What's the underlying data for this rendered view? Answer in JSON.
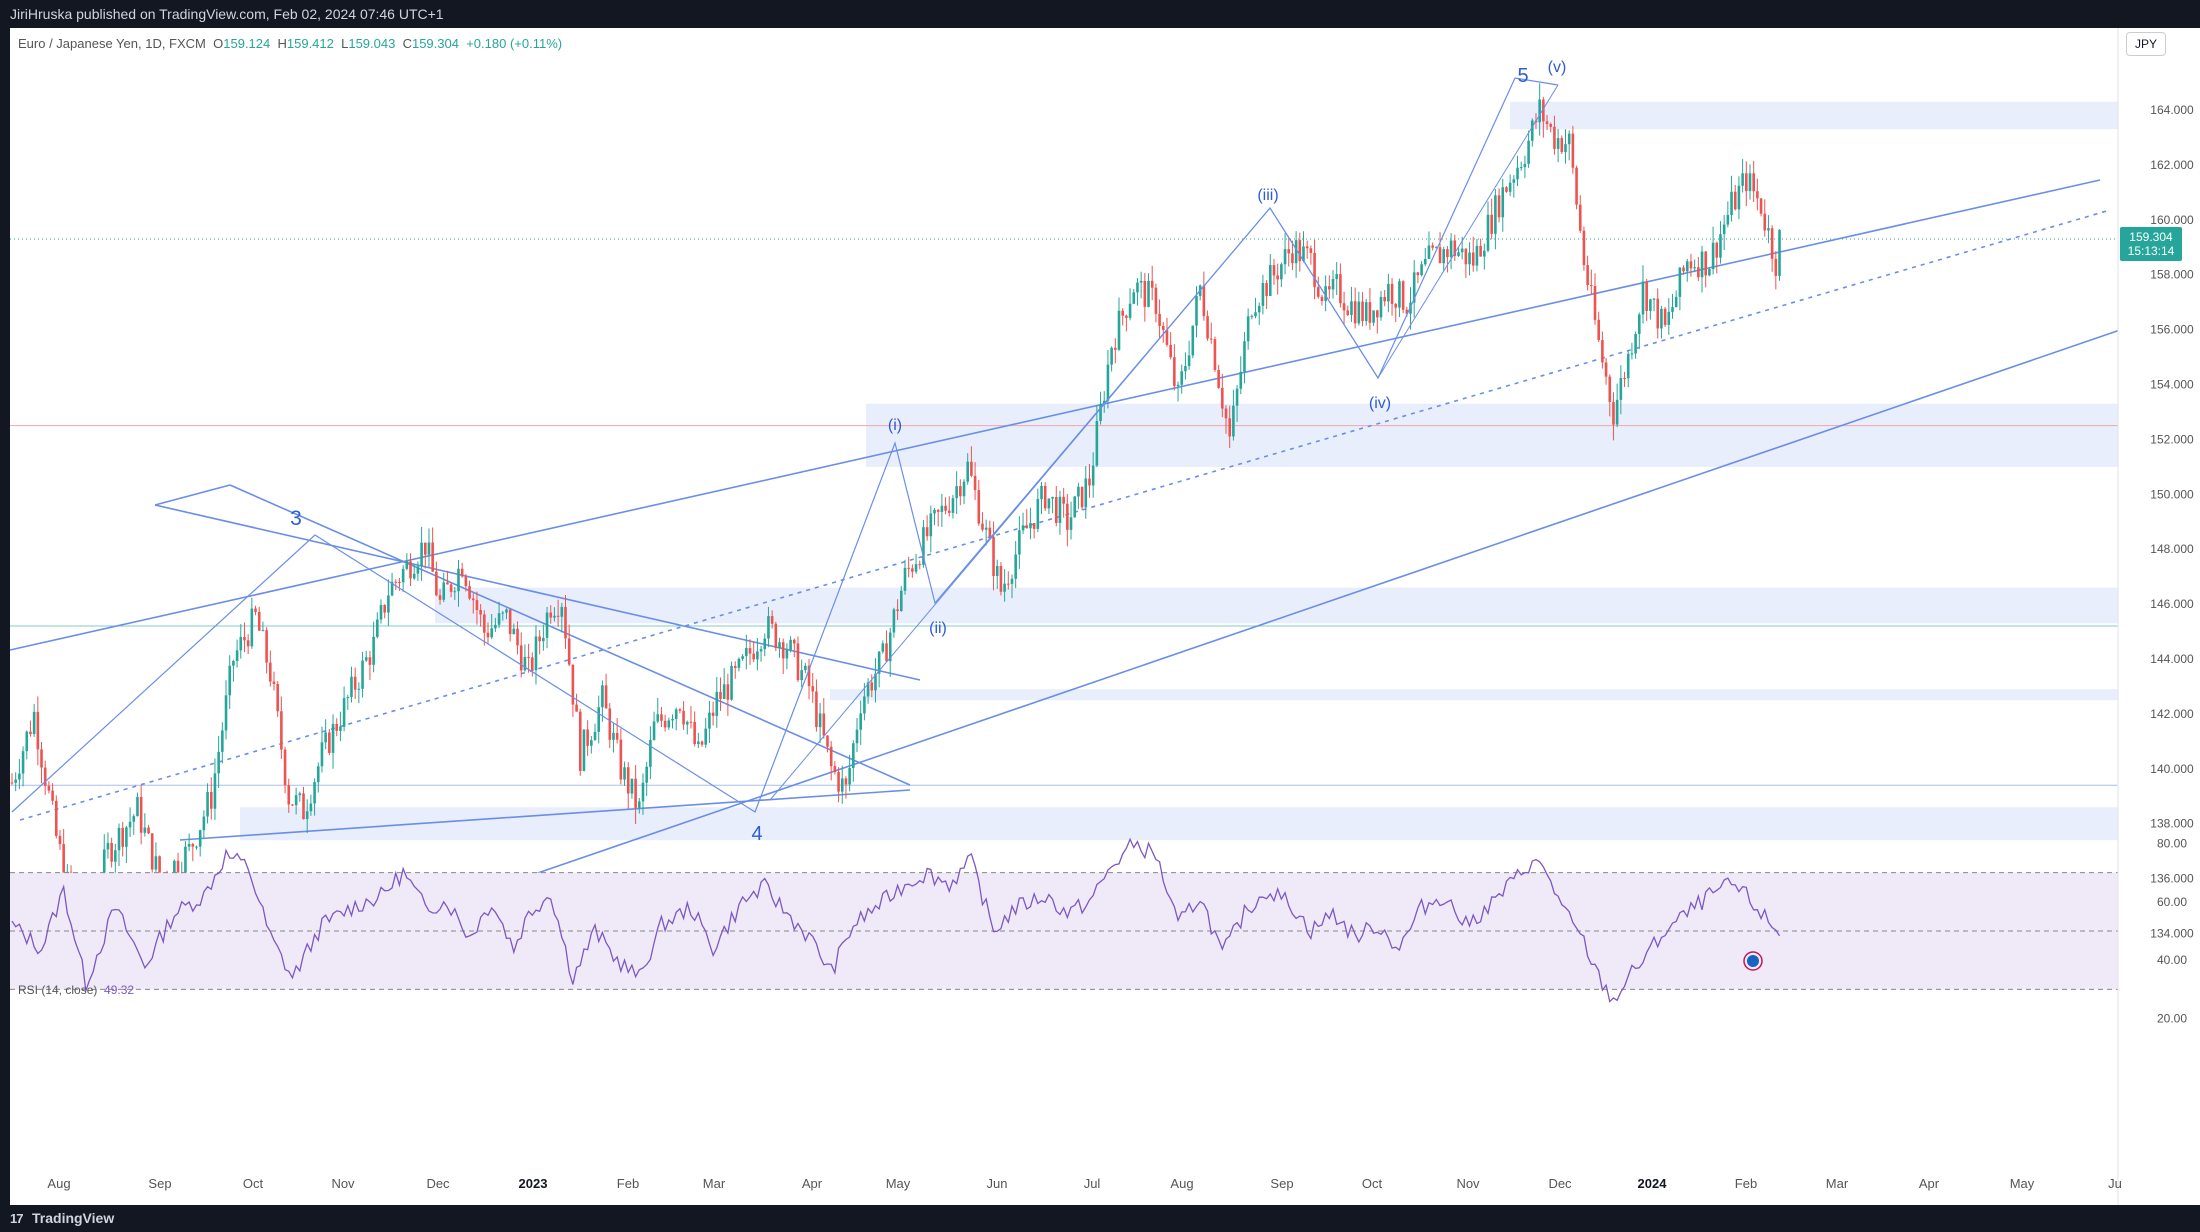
{
  "header": {
    "published": "JiriHruska published on TradingView.com, Feb 02, 2024 07:46 UTC+1"
  },
  "legend": {
    "symbol": "Euro / Japanese Yen, 1D, FXCM",
    "open_label": "O",
    "open": "159.124",
    "high_label": "H",
    "high": "159.412",
    "low_label": "L",
    "low": "159.043",
    "close_label": "C",
    "close": "159.304",
    "change": "+0.180 (+0.11%)"
  },
  "currency_button": "JPY",
  "price_tag": {
    "price": "159.304",
    "countdown": "15:13:14"
  },
  "rsi": {
    "label": "RSI (14, close)",
    "value": "49.32"
  },
  "footer": {
    "logo_mark": "17",
    "brand": "TradingView"
  },
  "colors": {
    "up": "#26a69a",
    "down": "#ef5350",
    "lines": "#6a8ee8",
    "zones": "#e8eefc",
    "rsi_line": "#7e57c2",
    "rsi_band": "#efe9f8",
    "hline_red": "#f4a6a6",
    "hline_teal": "#80cbc4"
  },
  "chart_data": {
    "type": "candlestick",
    "instrument": "Euro / Japanese Yen",
    "timeframe": "1D",
    "y_axis": {
      "ticks": [
        "134.000",
        "136.000",
        "138.000",
        "140.000",
        "142.000",
        "144.000",
        "146.000",
        "148.000",
        "150.000",
        "152.000",
        "154.000",
        "156.000",
        "158.000",
        "160.000",
        "162.000",
        "164.000"
      ]
    },
    "x_axis": {
      "ticks": [
        "Aug",
        "Sep",
        "Oct",
        "Nov",
        "Dec",
        "2023",
        "Feb",
        "Mar",
        "Apr",
        "May",
        "Jun",
        "Jul",
        "Aug",
        "Sep",
        "Oct",
        "Nov",
        "Dec",
        "2024",
        "Feb",
        "Mar",
        "Apr",
        "May",
        "Ju"
      ],
      "bold": [
        "2023",
        "2024"
      ]
    },
    "price_path": [
      [
        0,
        139.5
      ],
      [
        6,
        142.0
      ],
      [
        12,
        137.5
      ],
      [
        19,
        133.5
      ],
      [
        26,
        137.0
      ],
      [
        34,
        138.5
      ],
      [
        40,
        136.0
      ],
      [
        48,
        137.0
      ],
      [
        54,
        139.0
      ],
      [
        60,
        144.0
      ],
      [
        66,
        145.5
      ],
      [
        70,
        143.5
      ],
      [
        75,
        139.0
      ],
      [
        79,
        138.5
      ],
      [
        84,
        140.5
      ],
      [
        92,
        142.8
      ],
      [
        98,
        144.5
      ],
      [
        102,
        146.5
      ],
      [
        106,
        147.2
      ],
      [
        112,
        148.2
      ],
      [
        116,
        146.0
      ],
      [
        122,
        147.5
      ],
      [
        128,
        145.0
      ],
      [
        134,
        145.5
      ],
      [
        140,
        143.5
      ],
      [
        146,
        146.0
      ],
      [
        149,
        146.2
      ],
      [
        154,
        140.5
      ],
      [
        160,
        142.5
      ],
      [
        165,
        140.0
      ],
      [
        170,
        138.5
      ],
      [
        174,
        141.5
      ],
      [
        181,
        142.5
      ],
      [
        186,
        140.5
      ],
      [
        191,
        142.5
      ],
      [
        197,
        143.5
      ],
      [
        204,
        145.2
      ],
      [
        210,
        144.5
      ],
      [
        216,
        143.0
      ],
      [
        222,
        140.0
      ],
      [
        226,
        139.2
      ],
      [
        230,
        142.5
      ],
      [
        236,
        144.0
      ],
      [
        242,
        147.0
      ],
      [
        248,
        148.5
      ],
      [
        254,
        149.8
      ],
      [
        259,
        151.0
      ],
      [
        263,
        149.0
      ],
      [
        268,
        146.5
      ],
      [
        274,
        148.5
      ],
      [
        280,
        150.0
      ],
      [
        286,
        149.0
      ],
      [
        292,
        150.5
      ],
      [
        298,
        155.5
      ],
      [
        304,
        157.6
      ],
      [
        310,
        157.0
      ],
      [
        316,
        153.5
      ],
      [
        322,
        157.5
      ],
      [
        326,
        155.0
      ],
      [
        330,
        152.0
      ],
      [
        336,
        157.0
      ],
      [
        342,
        158.0
      ],
      [
        347,
        159.0
      ],
      [
        352,
        158.5
      ],
      [
        356,
        157.0
      ],
      [
        359,
        157.5
      ],
      [
        362,
        157.0
      ],
      [
        367,
        156.5
      ],
      [
        373,
        157.5
      ],
      [
        378,
        157.0
      ],
      [
        384,
        158.5
      ],
      [
        390,
        159.0
      ],
      [
        396,
        158.5
      ],
      [
        404,
        161.0
      ],
      [
        410,
        162.5
      ],
      [
        414,
        164.0
      ],
      [
        418,
        163.0
      ],
      [
        422,
        162.8
      ],
      [
        426,
        158.5
      ],
      [
        430,
        155.5
      ],
      [
        434,
        153.0
      ],
      [
        438,
        155.0
      ],
      [
        442,
        157.5
      ],
      [
        448,
        156.0
      ],
      [
        454,
        158.5
      ],
      [
        460,
        158.5
      ],
      [
        466,
        160.5
      ],
      [
        470,
        161.5
      ],
      [
        474,
        160.5
      ],
      [
        478,
        158.5
      ],
      [
        479,
        159.3
      ]
    ],
    "rsi_levels": {
      "upper": 70,
      "middle": 50,
      "lower": 30
    },
    "rsi_axis": {
      "ticks": [
        "80.00",
        "60.00",
        "40.00",
        "20.00"
      ]
    },
    "rsi_path": [
      [
        0,
        52
      ],
      [
        8,
        44
      ],
      [
        14,
        64
      ],
      [
        20,
        32
      ],
      [
        28,
        58
      ],
      [
        36,
        38
      ],
      [
        44,
        56
      ],
      [
        52,
        62
      ],
      [
        58,
        76
      ],
      [
        64,
        72
      ],
      [
        70,
        48
      ],
      [
        76,
        34
      ],
      [
        84,
        52
      ],
      [
        92,
        58
      ],
      [
        100,
        62
      ],
      [
        106,
        70
      ],
      [
        112,
        58
      ],
      [
        118,
        60
      ],
      [
        124,
        48
      ],
      [
        130,
        60
      ],
      [
        136,
        44
      ],
      [
        140,
        56
      ],
      [
        146,
        63
      ],
      [
        152,
        34
      ],
      [
        158,
        50
      ],
      [
        164,
        40
      ],
      [
        170,
        34
      ],
      [
        176,
        52
      ],
      [
        184,
        58
      ],
      [
        190,
        44
      ],
      [
        198,
        60
      ],
      [
        204,
        65
      ],
      [
        210,
        56
      ],
      [
        216,
        48
      ],
      [
        222,
        36
      ],
      [
        228,
        52
      ],
      [
        236,
        60
      ],
      [
        242,
        66
      ],
      [
        248,
        70
      ],
      [
        254,
        66
      ],
      [
        260,
        74
      ],
      [
        266,
        50
      ],
      [
        272,
        58
      ],
      [
        280,
        62
      ],
      [
        286,
        56
      ],
      [
        292,
        60
      ],
      [
        298,
        72
      ],
      [
        304,
        80
      ],
      [
        310,
        76
      ],
      [
        316,
        52
      ],
      [
        322,
        62
      ],
      [
        328,
        42
      ],
      [
        334,
        56
      ],
      [
        340,
        64
      ],
      [
        346,
        60
      ],
      [
        352,
        50
      ],
      [
        358,
        56
      ],
      [
        364,
        48
      ],
      [
        370,
        52
      ],
      [
        376,
        44
      ],
      [
        382,
        58
      ],
      [
        388,
        62
      ],
      [
        394,
        52
      ],
      [
        400,
        58
      ],
      [
        406,
        66
      ],
      [
        412,
        74
      ],
      [
        416,
        70
      ],
      [
        420,
        58
      ],
      [
        426,
        46
      ],
      [
        430,
        34
      ],
      [
        434,
        26
      ],
      [
        438,
        34
      ],
      [
        442,
        40
      ],
      [
        448,
        50
      ],
      [
        454,
        56
      ],
      [
        460,
        62
      ],
      [
        466,
        66
      ],
      [
        470,
        62
      ],
      [
        474,
        56
      ],
      [
        479,
        49
      ]
    ],
    "wave_labels": [
      {
        "text": "3"
      },
      {
        "text": "4"
      },
      {
        "text": "5"
      },
      {
        "text": "(i)"
      },
      {
        "text": "(ii)"
      },
      {
        "text": "(iii)"
      },
      {
        "text": "(iv)"
      },
      {
        "text": "(v)"
      }
    ]
  }
}
